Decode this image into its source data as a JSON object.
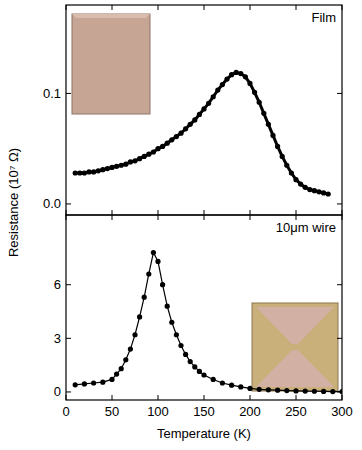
{
  "chart_data": [
    {
      "type": "line",
      "title": "Film",
      "ylabel": "Resistance (10⁷ Ω)",
      "xlim": [
        0,
        300
      ],
      "xticks": [
        0,
        50,
        100,
        150,
        200,
        250,
        300
      ],
      "ylim": [
        -0.01,
        0.18
      ],
      "yticks": [
        {
          "value": 0,
          "label": "0.0"
        },
        {
          "value": 0.1,
          "label": "0.1"
        }
      ],
      "tick_labels": "y",
      "x": [
        10,
        15,
        20,
        25,
        30,
        35,
        40,
        45,
        50,
        55,
        60,
        65,
        70,
        75,
        80,
        85,
        90,
        95,
        100,
        105,
        110,
        115,
        120,
        125,
        130,
        135,
        140,
        145,
        150,
        155,
        160,
        165,
        170,
        175,
        180,
        185,
        190,
        195,
        200,
        205,
        210,
        215,
        220,
        225,
        230,
        235,
        240,
        245,
        250,
        255,
        260,
        265,
        270,
        275,
        280,
        285
      ],
      "series": [
        {
          "color": "#000000",
          "marker": "circle",
          "line_style": "solid",
          "values": [
            0.028,
            0.028,
            0.028,
            0.029,
            0.029,
            0.03,
            0.031,
            0.032,
            0.033,
            0.034,
            0.035,
            0.036,
            0.038,
            0.039,
            0.041,
            0.043,
            0.045,
            0.047,
            0.05,
            0.052,
            0.055,
            0.058,
            0.061,
            0.064,
            0.068,
            0.072,
            0.076,
            0.081,
            0.086,
            0.091,
            0.097,
            0.103,
            0.108,
            0.113,
            0.117,
            0.119,
            0.118,
            0.115,
            0.109,
            0.101,
            0.092,
            0.082,
            0.072,
            0.062,
            0.052,
            0.043,
            0.035,
            0.028,
            0.022,
            0.018,
            0.015,
            0.013,
            0.012,
            0.011,
            0.01,
            0.009
          ]
        }
      ]
    },
    {
      "type": "line",
      "title": "10μm wire",
      "xlabel": "Temperature (K)",
      "xlim": [
        0,
        300
      ],
      "xticks": [
        0,
        50,
        100,
        150,
        200,
        250,
        300
      ],
      "ylim": [
        -0.45,
        9.9
      ],
      "yticks": [
        0,
        3,
        6
      ],
      "x": [
        10,
        20,
        30,
        40,
        50,
        55,
        60,
        65,
        70,
        75,
        80,
        85,
        90,
        95,
        100,
        105,
        110,
        115,
        120,
        125,
        130,
        135,
        140,
        145,
        150,
        160,
        170,
        180,
        190,
        200,
        210,
        220,
        230,
        240,
        250,
        260,
        270,
        280,
        290,
        300
      ],
      "series": [
        {
          "color": "#000000",
          "marker": "circle",
          "line_style": "solid",
          "values": [
            0.4,
            0.45,
            0.5,
            0.55,
            0.7,
            1.0,
            1.3,
            1.8,
            2.4,
            3.2,
            4.2,
            5.3,
            6.6,
            7.8,
            7.3,
            6.0,
            4.8,
            3.9,
            3.2,
            2.6,
            2.1,
            1.7,
            1.4,
            1.15,
            0.95,
            0.7,
            0.5,
            0.38,
            0.28,
            0.2,
            0.15,
            0.12,
            0.1,
            0.08,
            0.06,
            0.05,
            0.04,
            0.03,
            0.02,
            0.02
          ]
        }
      ]
    }
  ]
}
